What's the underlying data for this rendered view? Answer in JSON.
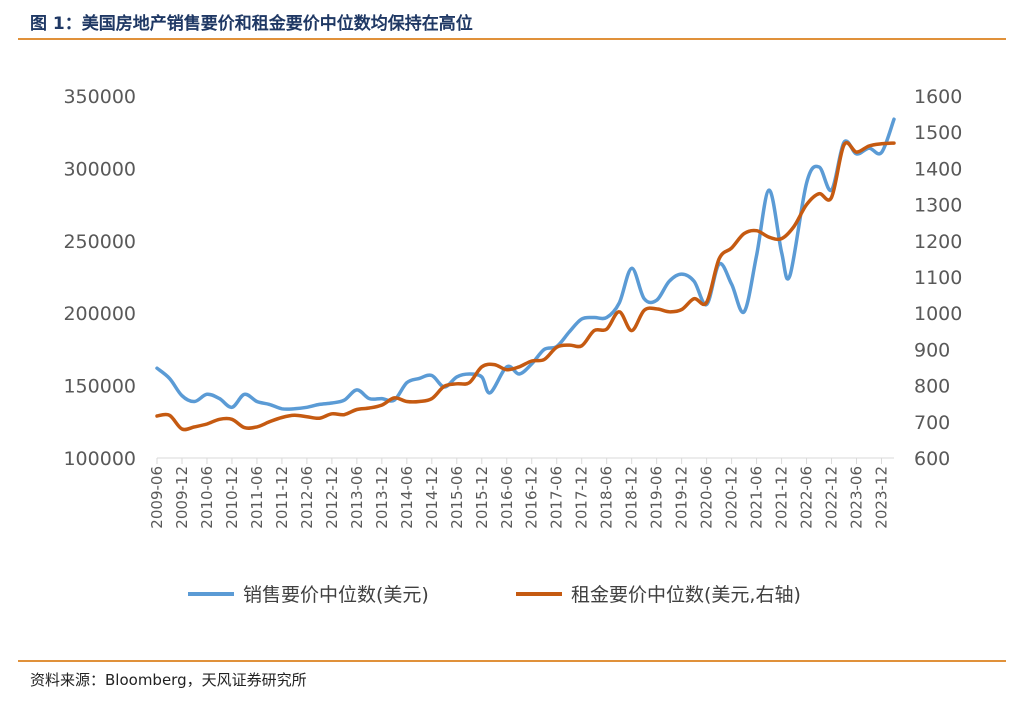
{
  "header": {
    "title": "图 1：美国房地产销售要价和租金要价中位数均保持在高位"
  },
  "footer": {
    "source": "资料来源：Bloomberg，天风证券研究所"
  },
  "colors": {
    "sale_series": "#5b9bd5",
    "rent_series": "#c55a11",
    "rule": "#e0913a",
    "title": "#1f3864"
  },
  "chart_data": {
    "type": "line",
    "title": "",
    "xlabel": "",
    "ylabel": "",
    "y_left_ticks": [
      "350000",
      "300000",
      "250000",
      "200000",
      "150000",
      "100000"
    ],
    "y_right_ticks": [
      "1600",
      "1500",
      "1400",
      "1300",
      "1200",
      "1100",
      "1000",
      "900",
      "800",
      "700",
      "600"
    ],
    "ylim_left": [
      100000,
      350000
    ],
    "ylim_right": [
      600,
      1600
    ],
    "x_tick_labels": [
      "2009-06",
      "2009-12",
      "2010-06",
      "2010-12",
      "2011-06",
      "2011-12",
      "2012-06",
      "2012-12",
      "2013-06",
      "2013-12",
      "2014-06",
      "2014-12",
      "2015-06",
      "2015-12",
      "2016-06",
      "2016-12",
      "2017-06",
      "2017-12",
      "2018-06",
      "2018-12",
      "2019-06",
      "2019-12",
      "2020-06",
      "2020-12",
      "2021-06",
      "2021-12",
      "2022-06",
      "2022-12",
      "2023-06",
      "2023-12"
    ],
    "legend_position": "bottom",
    "grid": false,
    "series": [
      {
        "name": "销售要价中位数(美元)",
        "axis": "left",
        "points": [
          [
            "2009-06",
            162000
          ],
          [
            "2009-09",
            155000
          ],
          [
            "2009-12",
            143000
          ],
          [
            "2010-03",
            139000
          ],
          [
            "2010-06",
            144000
          ],
          [
            "2010-09",
            141000
          ],
          [
            "2010-12",
            135000
          ],
          [
            "2011-03",
            144000
          ],
          [
            "2011-06",
            139000
          ],
          [
            "2011-09",
            137000
          ],
          [
            "2011-12",
            134000
          ],
          [
            "2012-03",
            134000
          ],
          [
            "2012-06",
            135000
          ],
          [
            "2012-09",
            137000
          ],
          [
            "2012-12",
            138000
          ],
          [
            "2013-03",
            140000
          ],
          [
            "2013-06",
            147000
          ],
          [
            "2013-09",
            141000
          ],
          [
            "2013-12",
            141000
          ],
          [
            "2014-03",
            140000
          ],
          [
            "2014-06",
            152000
          ],
          [
            "2014-09",
            155000
          ],
          [
            "2014-12",
            157000
          ],
          [
            "2015-03",
            149000
          ],
          [
            "2015-06",
            156000
          ],
          [
            "2015-09",
            158000
          ],
          [
            "2015-12",
            156000
          ],
          [
            "2016-02",
            145000
          ],
          [
            "2016-06",
            163000
          ],
          [
            "2016-09",
            158000
          ],
          [
            "2016-12",
            165000
          ],
          [
            "2017-03",
            175000
          ],
          [
            "2017-06",
            177000
          ],
          [
            "2017-09",
            187000
          ],
          [
            "2017-12",
            196000
          ],
          [
            "2018-03",
            197000
          ],
          [
            "2018-06",
            197000
          ],
          [
            "2018-09",
            207000
          ],
          [
            "2018-12",
            231000
          ],
          [
            "2019-03",
            210000
          ],
          [
            "2019-06",
            209000
          ],
          [
            "2019-09",
            222000
          ],
          [
            "2019-12",
            227000
          ],
          [
            "2020-03",
            222000
          ],
          [
            "2020-06",
            206000
          ],
          [
            "2020-09",
            234000
          ],
          [
            "2020-12",
            220000
          ],
          [
            "2021-03",
            201000
          ],
          [
            "2021-06",
            240000
          ],
          [
            "2021-09",
            285000
          ],
          [
            "2021-12",
            242000
          ],
          [
            "2022-02",
            226000
          ],
          [
            "2022-06",
            290000
          ],
          [
            "2022-09",
            301000
          ],
          [
            "2022-12",
            285000
          ],
          [
            "2023-03",
            318000
          ],
          [
            "2023-06",
            310000
          ],
          [
            "2023-09",
            314000
          ],
          [
            "2023-12",
            311000
          ],
          [
            "2024-03",
            334000
          ]
        ]
      },
      {
        "name": "租金要价中位数(美元,右轴)",
        "axis": "right",
        "points": [
          [
            "2009-06",
            716
          ],
          [
            "2009-09",
            718
          ],
          [
            "2009-12",
            680
          ],
          [
            "2010-03",
            686
          ],
          [
            "2010-06",
            694
          ],
          [
            "2010-09",
            707
          ],
          [
            "2010-12",
            707
          ],
          [
            "2011-03",
            684
          ],
          [
            "2011-06",
            686
          ],
          [
            "2011-09",
            700
          ],
          [
            "2011-12",
            712
          ],
          [
            "2012-03",
            718
          ],
          [
            "2012-06",
            714
          ],
          [
            "2012-09",
            710
          ],
          [
            "2012-12",
            722
          ],
          [
            "2013-03",
            720
          ],
          [
            "2013-06",
            734
          ],
          [
            "2013-09",
            738
          ],
          [
            "2013-12",
            746
          ],
          [
            "2014-03",
            766
          ],
          [
            "2014-06",
            756
          ],
          [
            "2014-09",
            756
          ],
          [
            "2014-12",
            764
          ],
          [
            "2015-03",
            798
          ],
          [
            "2015-06",
            805
          ],
          [
            "2015-09",
            808
          ],
          [
            "2015-12",
            852
          ],
          [
            "2016-03",
            858
          ],
          [
            "2016-06",
            844
          ],
          [
            "2016-09",
            852
          ],
          [
            "2016-12",
            868
          ],
          [
            "2017-03",
            872
          ],
          [
            "2017-06",
            906
          ],
          [
            "2017-09",
            912
          ],
          [
            "2017-12",
            910
          ],
          [
            "2018-03",
            952
          ],
          [
            "2018-06",
            956
          ],
          [
            "2018-09",
            1004
          ],
          [
            "2018-12",
            952
          ],
          [
            "2019-03",
            1008
          ],
          [
            "2019-06",
            1012
          ],
          [
            "2019-09",
            1004
          ],
          [
            "2019-12",
            1010
          ],
          [
            "2020-03",
            1040
          ],
          [
            "2020-06",
            1030
          ],
          [
            "2020-09",
            1150
          ],
          [
            "2020-12",
            1180
          ],
          [
            "2021-03",
            1220
          ],
          [
            "2021-06",
            1228
          ],
          [
            "2021-09",
            1210
          ],
          [
            "2021-12",
            1206
          ],
          [
            "2022-03",
            1240
          ],
          [
            "2022-06",
            1300
          ],
          [
            "2022-09",
            1330
          ],
          [
            "2022-12",
            1320
          ],
          [
            "2023-03",
            1465
          ],
          [
            "2023-06",
            1445
          ],
          [
            "2023-09",
            1462
          ],
          [
            "2023-12",
            1468
          ],
          [
            "2024-03",
            1470
          ]
        ]
      }
    ]
  }
}
